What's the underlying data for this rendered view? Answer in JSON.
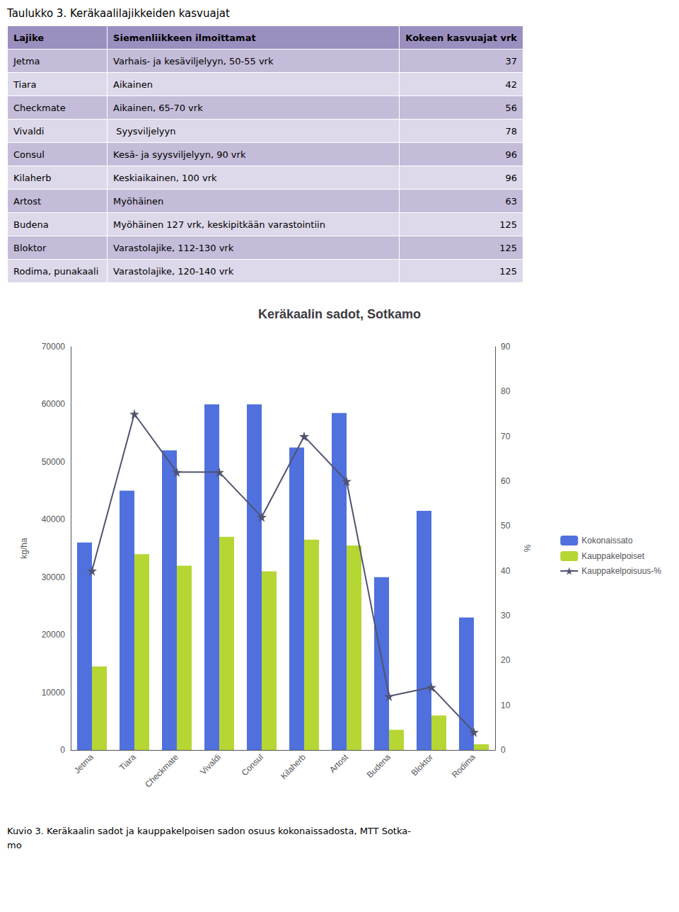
{
  "table": {
    "title": "Taulukko 3. Keräkaalilajikkeiden kasvuajat",
    "headers": [
      "Lajike",
      "Siemenliikkeen ilmoittamat",
      "Kokeen kasvuajat vrk"
    ],
    "rows": [
      [
        "Jetma",
        "Varhais- ja kesäviljelyyn, 50-55 vrk",
        "37"
      ],
      [
        "Tiara",
        "Aikainen",
        "42"
      ],
      [
        "Checkmate",
        "Aikainen, 65-70 vrk",
        "56"
      ],
      [
        "Vivaldi",
        " Syysviljelyyn",
        "78"
      ],
      [
        "Consul",
        "Kesä- ja syysviljelyyn, 90 vrk",
        "96"
      ],
      [
        "Kilaherb",
        "Keskiaikainen, 100 vrk",
        "96"
      ],
      [
        "Artost",
        "Myöhäinen",
        "63"
      ],
      [
        "Budena",
        "Myöhäinen 127 vrk, keskipitkään varastointiin",
        "125"
      ],
      [
        "Bloktor",
        "Varastolajike, 112-130 vrk",
        "125"
      ],
      [
        "Rodima, punakaali",
        "Varastolajike, 120-140 vrk",
        "125"
      ]
    ],
    "header_color": "#9b8fc0",
    "row_colors": [
      "#c4bcd8",
      "#ddd8ea"
    ]
  },
  "chart_data": {
    "type": "bar",
    "title": "Keräkaalin sadot, Sotkamo",
    "categories": [
      "Jetma",
      "Tiara",
      "Checkmate",
      "Vivaldi",
      "Consul",
      "Kilaherb",
      "Artost",
      "Budena",
      "Bloktor",
      "Rodima"
    ],
    "series": [
      {
        "name": "Kokonaissato",
        "type": "bar",
        "values": [
          36000,
          45000,
          52000,
          60000,
          60000,
          52500,
          58500,
          30000,
          41500,
          23000
        ]
      },
      {
        "name": "Kauppakelpoiset",
        "type": "bar",
        "values": [
          14500,
          34000,
          32000,
          37000,
          31000,
          36500,
          35500,
          3500,
          6000,
          1000
        ]
      },
      {
        "name": "Kauppakelpoisuus-%",
        "type": "line",
        "axis": "y2",
        "marker": "star",
        "values": [
          40,
          75,
          62,
          62,
          52,
          70,
          60,
          12,
          14,
          4
        ]
      }
    ],
    "ylabel": "kg/ha",
    "y2label": "%",
    "ylim": [
      0,
      70000
    ],
    "yticks": [
      0,
      10000,
      20000,
      30000,
      40000,
      50000,
      60000,
      70000
    ],
    "y2lim": [
      0,
      90
    ],
    "y2ticks": [
      0,
      10,
      20,
      30,
      40,
      50,
      60,
      70,
      80,
      90
    ],
    "grid": false,
    "legend": "right"
  },
  "caption": [
    "Kuvio 3. Keräkaalin sadot ja kauppakelpoisen sadon osuus kokonaissadosta, MTT Sotka-",
    "mo"
  ]
}
